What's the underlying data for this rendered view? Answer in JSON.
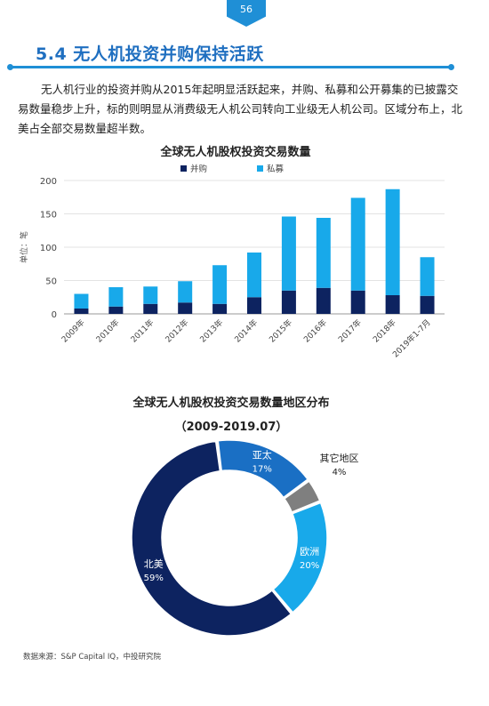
{
  "page_number": "56",
  "section_title": "5.4 无人机投资并购保持活跃",
  "intro_text": "无人机行业的投资并购从2015年起明显活跃起来，并购、私募和公开募集的已披露交易数量稳步上升，标的则明显从消费级无人机公司转向工业级无人机公司。区域分布上，北美占全部交易数量超半数。",
  "chart_data": [
    {
      "type": "bar",
      "stacked": true,
      "title": "全球无人机股权投资交易数量",
      "ylabel": "单位：笔",
      "xlabel": "",
      "ylim": [
        0,
        200
      ],
      "yticks": [
        0,
        50,
        100,
        150,
        200
      ],
      "categories": [
        "2009年",
        "2010年",
        "2011年",
        "2012年",
        "2013年",
        "2014年",
        "2015年",
        "2016年",
        "2017年",
        "2018年",
        "2019年1-7月"
      ],
      "series": [
        {
          "name": "并购",
          "color": "#0d2360",
          "values": [
            8,
            11,
            15,
            17,
            15,
            25,
            35,
            39,
            35,
            28,
            27
          ]
        },
        {
          "name": "私募",
          "color": "#18a9ea",
          "values": [
            22,
            29,
            26,
            32,
            58,
            67,
            111,
            105,
            139,
            159,
            58
          ]
        }
      ],
      "legend_position": "top",
      "grid": true
    },
    {
      "type": "pie",
      "donut": true,
      "title": "全球无人机股权投资交易数量地区分布",
      "subtitle": "（2009-2019.07）",
      "slices": [
        {
          "label": "亚太",
          "value": 17,
          "value_label": "17%",
          "color": "#1a6fc4"
        },
        {
          "label": "其它地区",
          "value": 4,
          "value_label": "4%",
          "color": "#7f7f7f"
        },
        {
          "label": "欧洲",
          "value": 20,
          "value_label": "20%",
          "color": "#18a9ea"
        },
        {
          "label": "北美",
          "value": 59,
          "value_label": "59%",
          "color": "#0d2360"
        }
      ]
    }
  ],
  "source": "数据来源：S&P Capital IQ，中投研究院"
}
